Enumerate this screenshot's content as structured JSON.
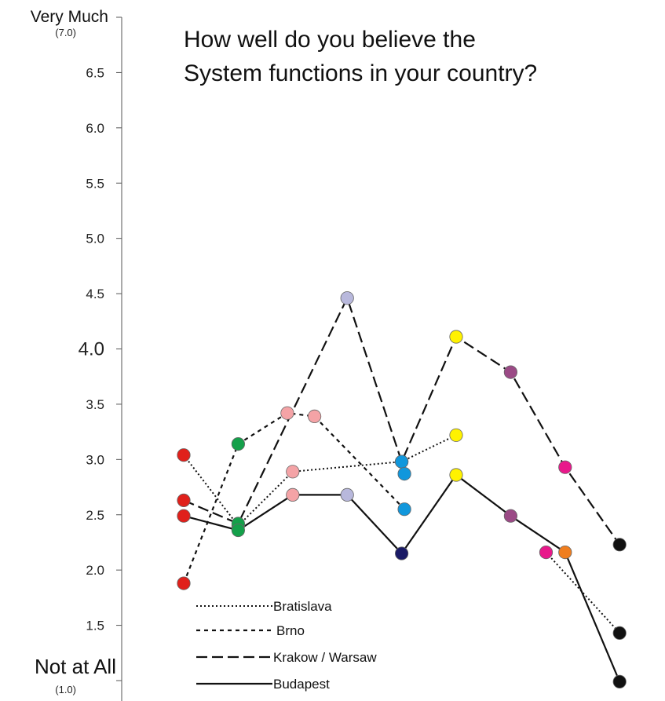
{
  "chart_data": {
    "type": "line",
    "title_lines": [
      "How well do you believe the",
      "System functions in your country?"
    ],
    "ylim": [
      1.0,
      7.0
    ],
    "y_top_label": "Very Much",
    "y_top_sub": "(7.0)",
    "y_bottom_label": "Not at All",
    "y_bottom_sub": "(1.0)",
    "y_ticks": [
      {
        "value": 1.5,
        "label": "1.5"
      },
      {
        "value": 2.0,
        "label": "2.0"
      },
      {
        "value": 2.5,
        "label": "2.5"
      },
      {
        "value": 3.0,
        "label": "3.0"
      },
      {
        "value": 3.5,
        "label": "3.5"
      },
      {
        "value": 4.0,
        "label": "4.0",
        "emphasis": true
      },
      {
        "value": 4.5,
        "label": "4.5"
      },
      {
        "value": 5.0,
        "label": "5.0"
      },
      {
        "value": 5.5,
        "label": "5.5"
      },
      {
        "value": 6.0,
        "label": "6.0"
      },
      {
        "value": 6.5,
        "label": "6.5"
      }
    ],
    "grid": false,
    "legend_position": "bottom-left",
    "series": [
      {
        "name": "Bratislava",
        "style": "dotted",
        "points": [
          {
            "x": 1,
            "y": 3.04,
            "color": "#e0201b"
          },
          {
            "x": 2,
            "y": 2.4,
            "color": "#14a04a"
          },
          {
            "x": 3,
            "y": 2.89,
            "color": "#f4a3a6"
          },
          {
            "x": 5,
            "y": 2.98,
            "color": "#1197dc"
          },
          {
            "x": 6,
            "y": 3.22,
            "color": "#fff200"
          }
        ]
      },
      {
        "name": "Brno",
        "style": "dashed-short",
        "points": [
          {
            "x": 1,
            "y": 1.88,
            "color": "#e0201b"
          },
          {
            "x": 2,
            "y": 3.14,
            "color": "#14a04a"
          },
          {
            "x": 2.9,
            "y": 3.42,
            "color": "#f4a3a6"
          },
          {
            "x": 3.4,
            "y": 3.39,
            "color": "#f4a3a6"
          },
          {
            "x": 5.05,
            "y": 2.55,
            "color": "#1197dc"
          }
        ]
      },
      {
        "name": "Krakow / Warsaw",
        "style": "dashed-long",
        "points": [
          {
            "x": 1,
            "y": 2.63,
            "color": "#e0201b"
          },
          {
            "x": 2,
            "y": 2.42,
            "color": "#14a04a"
          },
          {
            "x": 4,
            "y": 4.46,
            "color": "#b8b8dc"
          },
          {
            "x": 5,
            "y": 2.98,
            "color": "#1197dc"
          },
          {
            "x": 6,
            "y": 4.11,
            "color": "#fff200"
          },
          {
            "x": 7,
            "y": 3.79,
            "color": "#9b4a86"
          },
          {
            "x": 8,
            "y": 2.93,
            "color": "#e8198b"
          },
          {
            "x": 9,
            "y": 2.23,
            "color": "#111111"
          }
        ]
      },
      {
        "name": "Budapest",
        "style": "solid",
        "points": [
          {
            "x": 1,
            "y": 2.49,
            "color": "#e0201b"
          },
          {
            "x": 2,
            "y": 2.36,
            "color": "#14a04a"
          },
          {
            "x": 3,
            "y": 2.68,
            "color": "#f4a3a6"
          },
          {
            "x": 4,
            "y": 2.68,
            "color": "#b8b8dc"
          },
          {
            "x": 5,
            "y": 2.15,
            "color": "#1a1a66"
          },
          {
            "x": 6,
            "y": 2.86,
            "color": "#fff200"
          },
          {
            "x": 7,
            "y": 2.49,
            "color": "#9b4a86"
          },
          {
            "x": 8,
            "y": 2.16,
            "color": "#f07e1f"
          },
          {
            "x": 9,
            "y": 0.99,
            "color": "#111111"
          }
        ]
      },
      {
        "name": "",
        "style": "dotted",
        "points": [
          {
            "x": 7.65,
            "y": 2.16,
            "color": "#e8198b"
          },
          {
            "x": 9,
            "y": 1.43,
            "color": "#111111"
          }
        ]
      },
      {
        "name": "",
        "style": "none",
        "points": [
          {
            "x": 5.05,
            "y": 2.87,
            "color": "#1197dc"
          }
        ]
      }
    ]
  }
}
